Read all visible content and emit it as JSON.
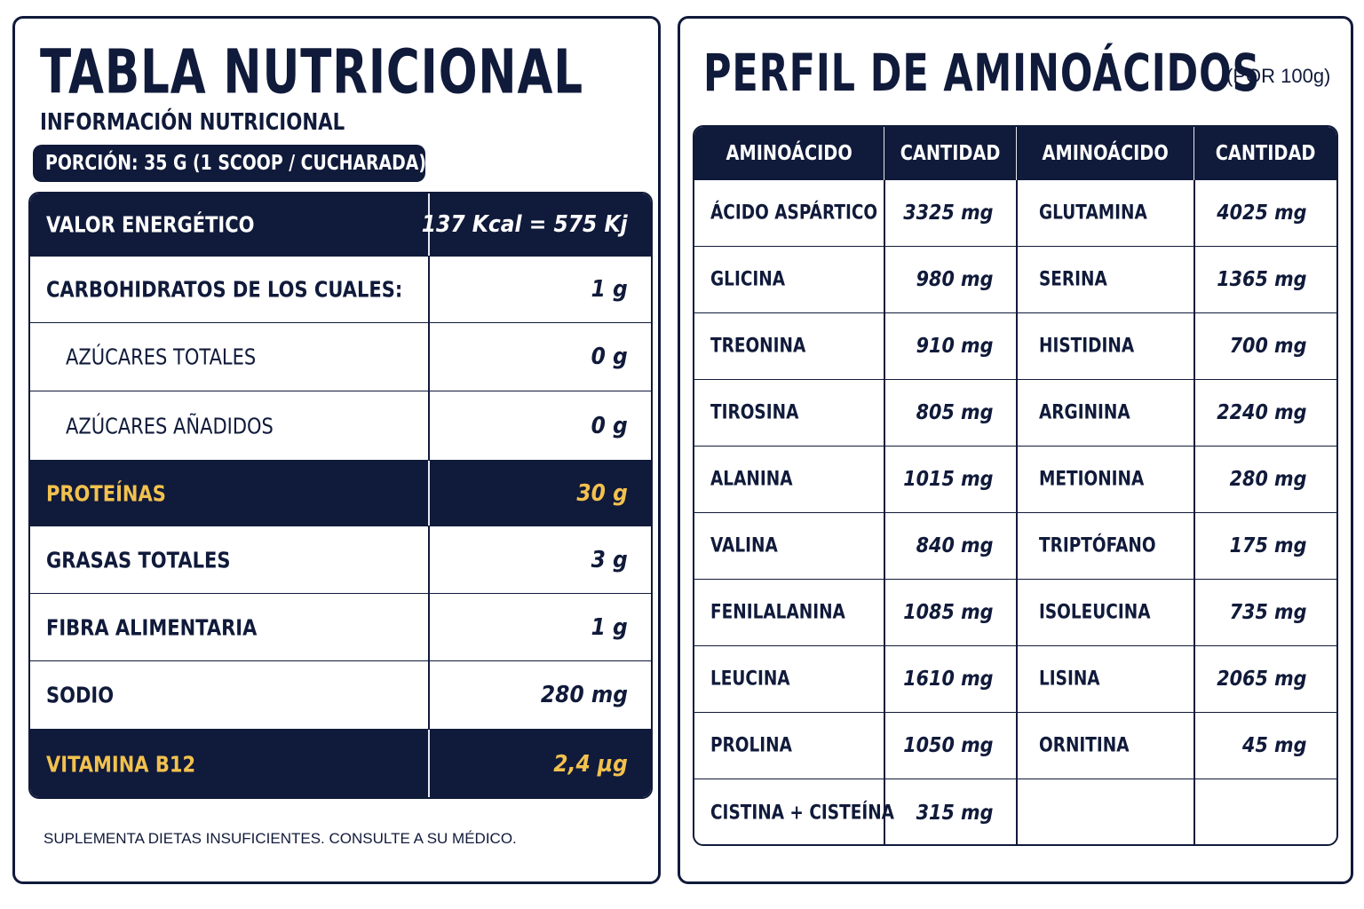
{
  "nutrition": {
    "title": "TABLA NUTRICIONAL",
    "subtitle": "INFORMACIÓN NUTRICIONAL",
    "portion": "PORCIÓN: 35 G (1 SCOOP / CUCHARADA)",
    "rows": [
      {
        "label": "VALOR ENERGÉTICO",
        "value": "137 Kcal = 575 Kj"
      },
      {
        "label": "CARBOHIDRATOS DE LOS CUALES:",
        "value": "1 g"
      },
      {
        "label": "AZÚCARES TOTALES",
        "value": "0 g"
      },
      {
        "label": "AZÚCARES AÑADIDOS",
        "value": "0 g"
      },
      {
        "label": "PROTEÍNAS",
        "value": "30 g"
      },
      {
        "label": "GRASAS TOTALES",
        "value": "3 g"
      },
      {
        "label": "FIBRA ALIMENTARIA",
        "value": "1 g"
      },
      {
        "label": "SODIO",
        "value": "280 mg"
      },
      {
        "label": "VITAMINA B12",
        "value": "2,4 µg"
      }
    ],
    "footnote": "SUPLEMENTA DIETAS INSUFICIENTES. CONSULTE A SU MÉDICO."
  },
  "amino": {
    "title": "PERFIL DE AMINOÁCIDOS",
    "unit": "(POR 100g)",
    "headers": [
      "AMINOÁCIDO",
      "CANTIDAD",
      "AMINOÁCIDO",
      "CANTIDAD"
    ],
    "rows": [
      {
        "name1": "ÁCIDO ASPÁRTICO",
        "qty1": "3325 mg",
        "name2": "GLUTAMINA",
        "qty2": "4025 mg"
      },
      {
        "name1": "GLICINA",
        "qty1": "980 mg",
        "name2": "SERINA",
        "qty2": "1365 mg"
      },
      {
        "name1": "TREONINA",
        "qty1": "910 mg",
        "name2": "HISTIDINA",
        "qty2": "700 mg"
      },
      {
        "name1": "TIROSINA",
        "qty1": "805 mg",
        "name2": "ARGININA",
        "qty2": "2240 mg"
      },
      {
        "name1": "ALANINA",
        "qty1": "1015 mg",
        "name2": "METIONINA",
        "qty2": "280 mg"
      },
      {
        "name1": "VALINA",
        "qty1": "840 mg",
        "name2": "TRIPTÓFANO",
        "qty2": "175 mg"
      },
      {
        "name1": "FENILALANINA",
        "qty1": "1085 mg",
        "name2": "ISOLEUCINA",
        "qty2": "735 mg"
      },
      {
        "name1": "LEUCINA",
        "qty1": "1610 mg",
        "name2": "LISINA",
        "qty2": "2065 mg"
      },
      {
        "name1": "PROLINA",
        "qty1": "1050 mg",
        "name2": "ORNITINA",
        "qty2": "45 mg"
      },
      {
        "name1": "CISTINA + CISTEÍNA",
        "qty1": "315 mg",
        "name2": "",
        "qty2": ""
      }
    ]
  },
  "colors": {
    "navy": "#101a3a",
    "gold": "#f2c14e",
    "white": "#ffffff"
  }
}
